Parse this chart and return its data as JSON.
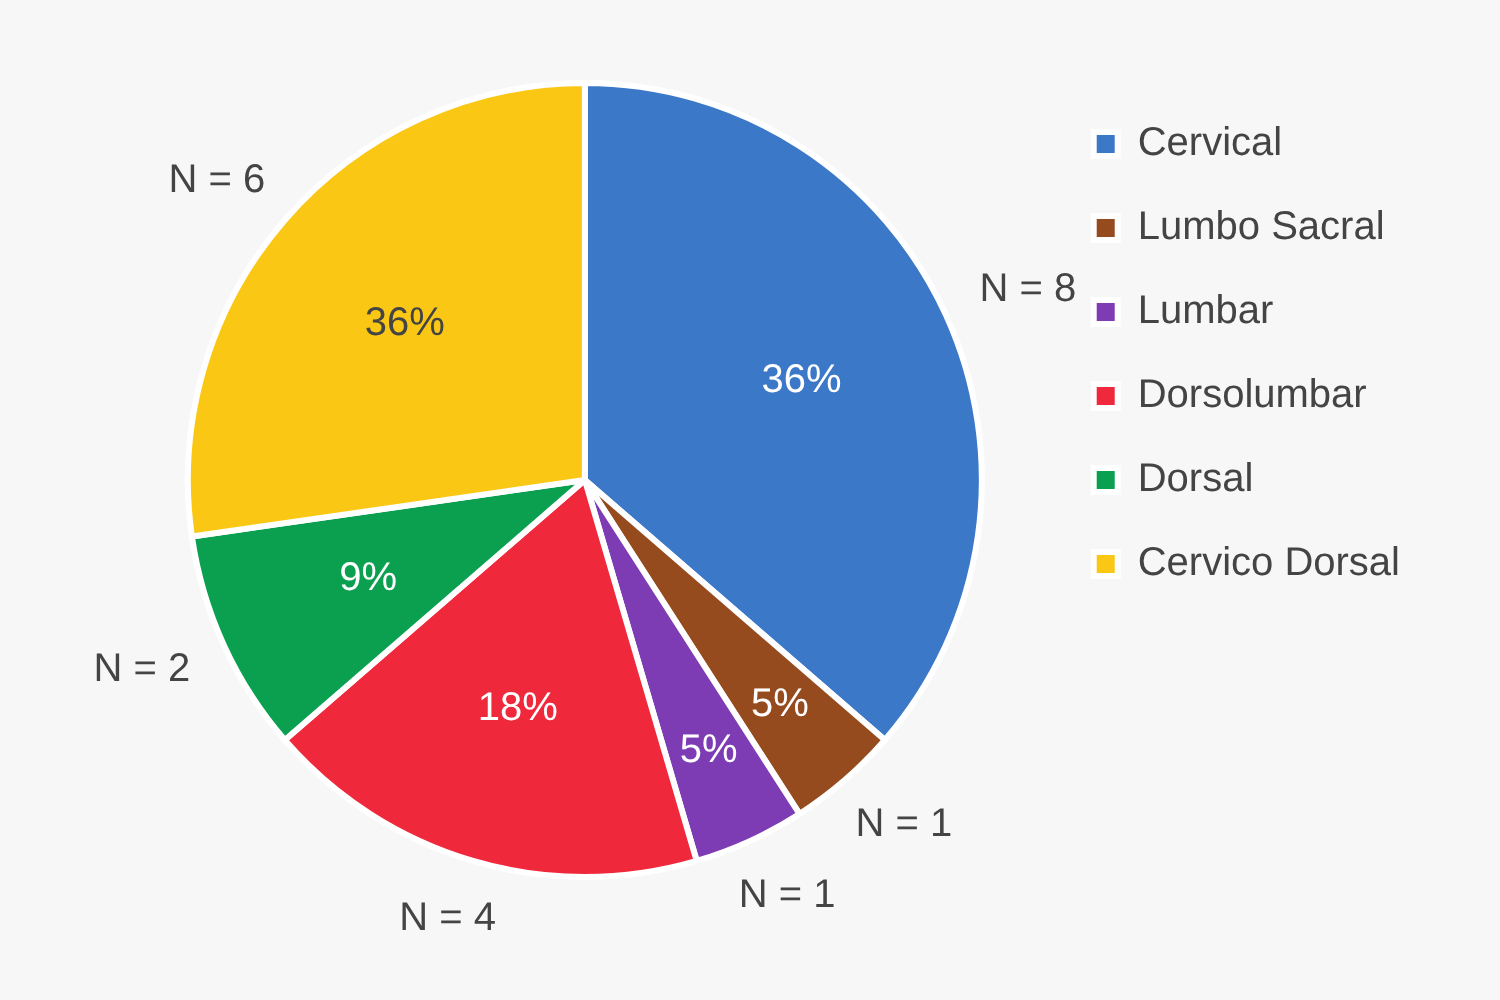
{
  "chart_data": {
    "type": "pie",
    "categories": [
      "Cervical",
      "Lumbo Sacral",
      "Lumbar",
      "Dorsolumbar",
      "Dorsal",
      "Cervico Dorsal"
    ],
    "values": [
      8,
      1,
      1,
      4,
      2,
      6
    ],
    "colors": [
      "#3c78c8",
      "#964b1e",
      "#7d3cb4",
      "#f0283c",
      "#0aa050",
      "#fac814"
    ],
    "value_labels": [
      "N = 8",
      "N = 1",
      "N = 1",
      "N = 4",
      "N = 2",
      "N = 6"
    ],
    "annotations": [
      {
        "text": "36%",
        "x": "Cervical"
      },
      {
        "text": "5%",
        "x": "Lumbo Sacral"
      },
      {
        "text": "5%",
        "x": "Lumbar"
      },
      {
        "text": "18%",
        "x": "Dorsolumbar"
      },
      {
        "text": "9%",
        "x": "Dorsal"
      },
      {
        "text": "36%",
        "x": "Cervico Dorsal"
      }
    ],
    "legend": "top right"
  }
}
